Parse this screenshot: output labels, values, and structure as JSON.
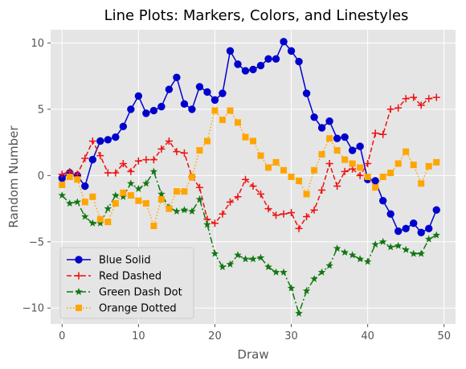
{
  "chart_data": {
    "type": "line",
    "title": "Line Plots: Markers, Colors, and Linestyles",
    "xlabel": "Draw",
    "ylabel": "Random Number",
    "xlim": [
      -1.5,
      51.5
    ],
    "ylim": [
      -11.2,
      11.0
    ],
    "xticks": [
      0,
      10,
      20,
      30,
      40,
      50
    ],
    "yticks": [
      -10,
      -5,
      0,
      5,
      10
    ],
    "grid": true,
    "legend_position": "lower-left",
    "x": [
      0,
      1,
      2,
      3,
      4,
      5,
      6,
      7,
      8,
      9,
      10,
      11,
      12,
      13,
      14,
      15,
      16,
      17,
      18,
      19,
      20,
      21,
      22,
      23,
      24,
      25,
      26,
      27,
      28,
      29,
      30,
      31,
      32,
      33,
      34,
      35,
      36,
      37,
      38,
      39,
      40,
      41,
      42,
      43,
      44,
      45,
      46,
      47,
      48,
      49
    ],
    "series": [
      {
        "name": "Blue Solid",
        "color": "#0000cc",
        "linestyle": "solid",
        "marker": "circle",
        "values": [
          -0.2,
          0.2,
          0.0,
          -0.8,
          1.2,
          2.6,
          2.7,
          2.9,
          3.7,
          5.0,
          6.0,
          4.7,
          4.9,
          5.2,
          6.5,
          7.4,
          5.4,
          5.0,
          6.7,
          6.3,
          5.7,
          6.2,
          9.4,
          8.4,
          7.9,
          8.0,
          8.3,
          8.8,
          8.8,
          10.1,
          9.4,
          8.6,
          6.2,
          4.4,
          3.6,
          4.1,
          2.8,
          2.9,
          1.9,
          2.2,
          -0.3,
          -0.4,
          -1.9,
          -2.9,
          -4.2,
          -4.0,
          -3.6,
          -4.3,
          -4.0,
          -2.6
        ]
      },
      {
        "name": "Red Dashed",
        "color": "#ee1111",
        "linestyle": "dashed",
        "marker": "plus",
        "values": [
          0.1,
          0.3,
          0.1,
          1.3,
          2.6,
          1.5,
          0.2,
          0.2,
          0.9,
          0.3,
          1.1,
          1.2,
          1.2,
          2.0,
          2.6,
          1.8,
          1.7,
          -0.1,
          -0.9,
          -3.3,
          -3.6,
          -2.9,
          -2.0,
          -1.6,
          -0.3,
          -0.8,
          -1.4,
          -2.5,
          -3.0,
          -2.9,
          -2.8,
          -4.0,
          -3.1,
          -2.6,
          -1.1,
          0.9,
          -0.8,
          0.3,
          0.5,
          0.0,
          0.9,
          3.2,
          3.1,
          5.0,
          5.1,
          5.8,
          5.9,
          5.3,
          5.8,
          5.9
        ]
      },
      {
        "name": "Green Dash Dot",
        "color": "#117711",
        "linestyle": "dashdot",
        "marker": "star",
        "values": [
          -1.5,
          -2.1,
          -2.0,
          -3.1,
          -3.6,
          -3.6,
          -2.5,
          -1.5,
          -1.6,
          -0.6,
          -1.0,
          -0.6,
          0.3,
          -1.4,
          -2.4,
          -2.7,
          -2.6,
          -2.7,
          -1.8,
          -3.7,
          -5.9,
          -6.9,
          -6.7,
          -6.0,
          -6.3,
          -6.3,
          -6.2,
          -6.9,
          -7.3,
          -7.3,
          -8.5,
          -10.4,
          -8.7,
          -7.8,
          -7.3,
          -6.8,
          -5.5,
          -5.8,
          -6.0,
          -6.3,
          -6.5,
          -5.2,
          -5.0,
          -5.4,
          -5.3,
          -5.6,
          -5.9,
          -5.9,
          -4.8,
          -4.5
        ]
      },
      {
        "name": "Orange Dotted",
        "color": "#ffa500",
        "linestyle": "dotted",
        "marker": "square",
        "values": [
          -0.7,
          -0.1,
          -0.3,
          -2.0,
          -1.6,
          -3.3,
          -3.5,
          -2.1,
          -1.3,
          -1.5,
          -1.9,
          -2.1,
          -3.8,
          -1.8,
          -2.5,
          -1.2,
          -1.2,
          -0.1,
          1.9,
          2.6,
          4.9,
          4.2,
          4.9,
          4.0,
          2.9,
          2.6,
          1.5,
          0.6,
          1.0,
          0.4,
          -0.1,
          -0.4,
          -1.4,
          0.4,
          1.6,
          2.8,
          1.9,
          1.2,
          0.9,
          0.6,
          -0.1,
          -0.9,
          -0.1,
          0.2,
          0.9,
          1.8,
          0.8,
          -0.6,
          0.7,
          1.0
        ]
      }
    ]
  }
}
